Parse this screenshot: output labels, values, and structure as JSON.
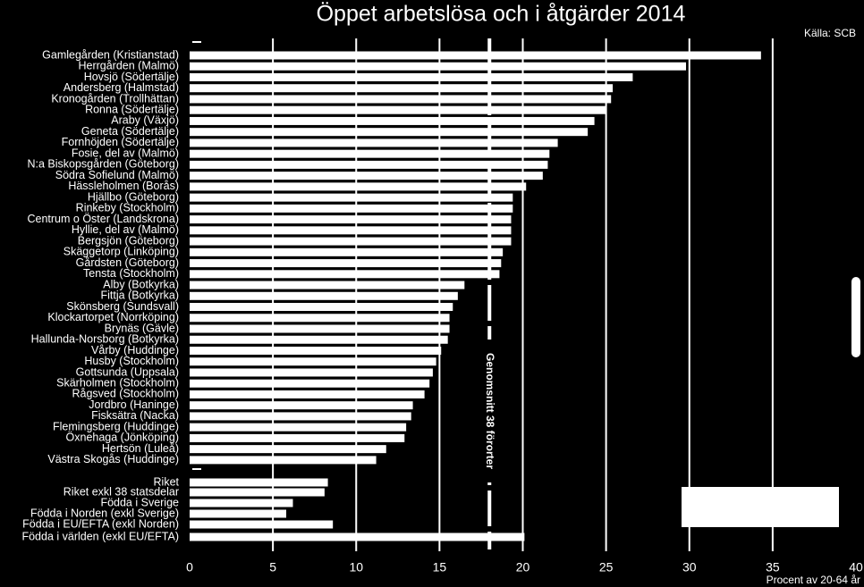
{
  "chart_data": {
    "type": "barh",
    "title": "Öppet arbetslösa och i åtgärder 2014",
    "source": "Källa: SCB",
    "x_label": "Procent av 20-64 år",
    "categories": [
      "Gamlegården (Kristianstad)",
      "Herrgården (Malmö)",
      "Hovsjö (Södertälje)",
      "Andersberg (Halmstad)",
      "Kronogården (Trollhättan)",
      "Ronna (Södertälje)",
      "Araby (Växjö)",
      "Geneta (Södertälje)",
      "Fornhöjden (Södertälje)",
      "Fosie, del av (Malmö)",
      "N:a Biskopsgården (Göteborg)",
      "Södra Sofielund (Malmö)",
      "Hässleholmen (Borås)",
      "Hjällbo (Göteborg)",
      "Rinkeby (Stockholm)",
      "Centrum o Öster (Landskrona)",
      "Hyllie, del av (Malmö)",
      "Bergsjön (Göteborg)",
      "Skäggetorp (Linköping)",
      "Gårdsten (Göteborg)",
      "Tensta (Stockholm)",
      "Alby (Botkyrka)",
      "Fittja (Botkyrka)",
      "Skönsberg (Sundsvall)",
      "Klockartorpet (Norrköping)",
      "Brynäs (Gävle)",
      "Hallunda-Norsborg (Botkyrka)",
      "Vårby (Huddinge)",
      "Husby (Stockholm)",
      "Gottsunda (Uppsala)",
      "Skärholmen (Stockholm)",
      "Rågsved (Stockholm)",
      "Jordbro (Haninge)",
      "Fisksätra (Nacka)",
      "Flemingsberg (Huddinge)",
      "Öxnehaga (Jönköping)",
      "Hertsön (Luleå)",
      "Västra Skogås (Huddinge)",
      "Riket",
      "Riket exkl 38 statsdelar",
      "Födda i Sverige",
      "Födda i Norden (exkl Sverige)",
      "Födda i EU/EFTA (exkl Norden)",
      "Födda i världen (exkl EU/EFTA)"
    ],
    "values": [
      34.3,
      29.8,
      26.6,
      25.4,
      25.3,
      25.0,
      24.3,
      23.9,
      22.1,
      21.6,
      21.5,
      21.2,
      20.2,
      19.4,
      19.4,
      19.3,
      19.3,
      19.3,
      18.8,
      18.7,
      18.6,
      16.5,
      16.1,
      15.8,
      15.6,
      15.6,
      15.5,
      15.1,
      14.8,
      14.6,
      14.4,
      14.1,
      13.4,
      13.3,
      13.0,
      12.9,
      11.8,
      11.2,
      8.3,
      8.1,
      6.2,
      5.8,
      8.6,
      20.1
    ],
    "color": "#ffffff",
    "average": {
      "value": 18,
      "label": "Genomsnitt 38 förorter"
    },
    "xlim": [
      0,
      40
    ],
    "xticks": [
      0,
      5,
      10,
      15,
      20,
      25,
      30,
      35,
      40
    ],
    "grid": true
  }
}
